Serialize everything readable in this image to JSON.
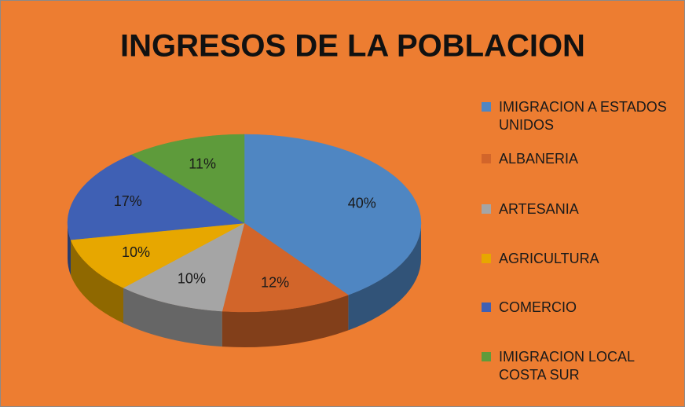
{
  "chart_data": {
    "type": "pie",
    "title": "INGRESOS DE LA POBLACION",
    "categories": [
      "IMIGRACION A ESTADOS UNIDOS",
      "ALBANERIA",
      "ARTESANIA",
      "AGRICULTURA",
      "COMERCIO",
      "IMIGRACION LOCAL COSTA SUR"
    ],
    "values": [
      40,
      12,
      10,
      10,
      17,
      11
    ],
    "value_labels": [
      "40%",
      "12%",
      "10%",
      "10%",
      "17%",
      "11%"
    ],
    "colors": [
      "#4f86c2",
      "#d2652a",
      "#a5a5a5",
      "#e7a700",
      "#3f60b4",
      "#5e9b3b"
    ],
    "legend": "right"
  }
}
